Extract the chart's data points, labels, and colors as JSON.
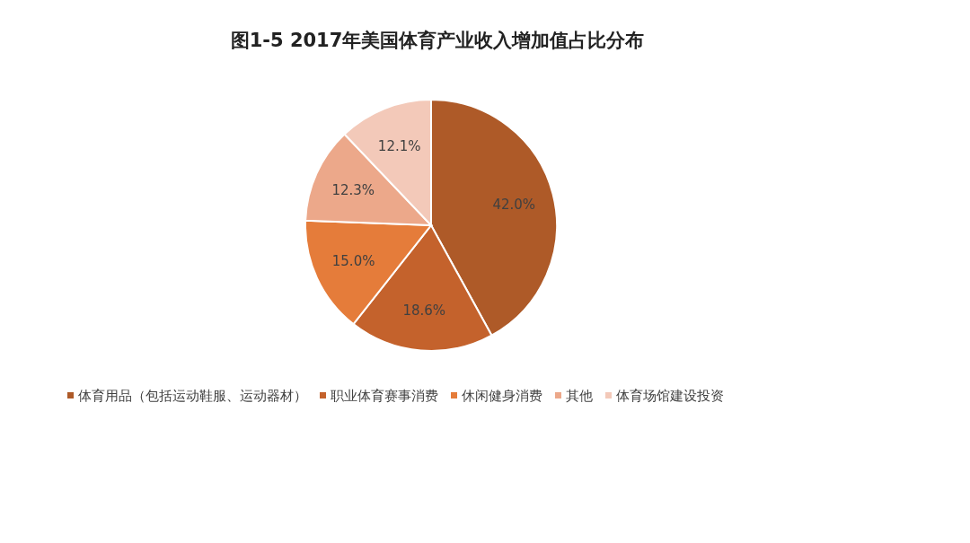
{
  "chart_data": {
    "type": "pie",
    "title": "图1-5 2017年美国体育产业收入增加值占比分布",
    "categories": [
      "体育用品（包括运动鞋服、运动器材）",
      "职业体育赛事消费",
      "休闲健身消费",
      "其他",
      "体育场馆建设投资"
    ],
    "values": [
      42.0,
      18.6,
      15.0,
      12.3,
      12.1
    ],
    "colors": [
      "#ae5a28",
      "#c4622c",
      "#e57c3a",
      "#eca88a",
      "#f3c9b9"
    ],
    "value_labels": [
      "42.0%",
      "18.6%",
      "15.0%",
      "12.3%",
      "12.1%"
    ],
    "legend": "bottom"
  }
}
